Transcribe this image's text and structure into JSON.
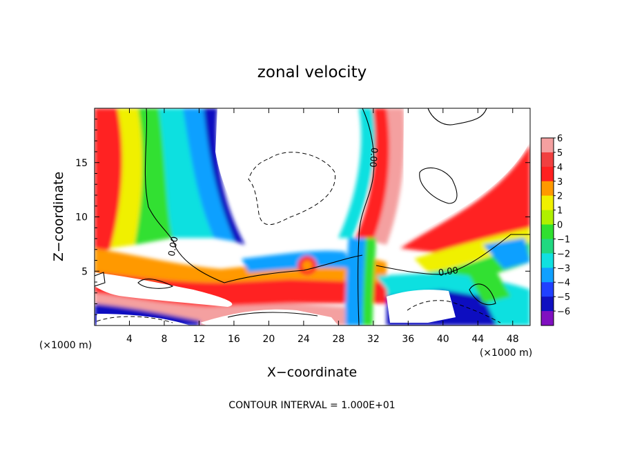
{
  "chart_data": {
    "type": "heatmap",
    "title": "zonal velocity",
    "xlabel": "X−coordinate",
    "ylabel": "Z−coordinate",
    "x_scale_label": "(×1000 m)",
    "z_scale_label": "(×1000 m)",
    "xlim": [
      0,
      50
    ],
    "ylim": [
      0,
      20
    ],
    "x_ticks": [
      4,
      8,
      12,
      16,
      20,
      24,
      28,
      32,
      36,
      40,
      44,
      48
    ],
    "x_tick_labels": [
      "4",
      "8",
      "12",
      "16",
      "20",
      "24",
      "28",
      "32",
      "36",
      "40",
      "44",
      "48"
    ],
    "y_ticks": [
      5,
      10,
      15
    ],
    "y_tick_labels": [
      "5",
      "10",
      "15"
    ],
    "colorbar": {
      "min": -6,
      "max": 6,
      "levels": [
        6,
        5,
        4,
        3,
        2,
        1,
        0,
        -1,
        -2,
        -3,
        -4,
        -5,
        -6
      ],
      "labels": [
        "6",
        "5",
        "4",
        "3",
        "2",
        "1",
        "0",
        "−1",
        "−2",
        "−3",
        "−4",
        "−5",
        "−6"
      ],
      "colors": [
        "#f4a0a0",
        "#f04040",
        "#ff2020",
        "#ff9900",
        "#f0f000",
        "#b0f000",
        "#30e030",
        "#20d880",
        "#10e0e0",
        "#10a0ff",
        "#2040ff",
        "#1010c0",
        "#8010c0"
      ]
    },
    "contour_labels": [
      "0.00",
      "0.00",
      "0.00"
    ],
    "annotation": "CONTOUR INTERVAL = 1.000E+01"
  }
}
